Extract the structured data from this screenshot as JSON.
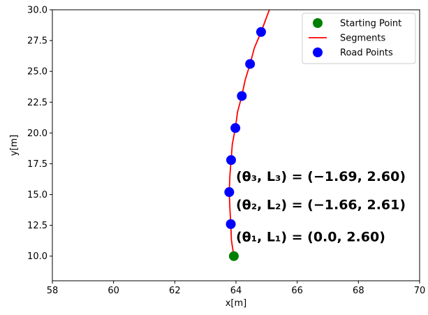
{
  "chart_data": {
    "type": "scatter",
    "xlabel": "x[m]",
    "ylabel": "y[m]",
    "xlim": [
      58,
      70
    ],
    "ylim": [
      8,
      30
    ],
    "x_ticks": [
      58,
      60,
      62,
      64,
      66,
      68,
      70
    ],
    "y_ticks": [
      10.0,
      12.5,
      15.0,
      17.5,
      20.0,
      22.5,
      25.0,
      27.5,
      30.0
    ],
    "x_tick_labels": [
      "58",
      "60",
      "62",
      "64",
      "66",
      "68",
      "70"
    ],
    "y_tick_labels": [
      "10.0",
      "12.5",
      "15.0",
      "17.5",
      "20.0",
      "22.5",
      "25.0",
      "27.5",
      "30.0"
    ],
    "grid": false,
    "legend_position": "top-right",
    "series": [
      {
        "name": "Starting Point",
        "kind": "point",
        "color": "#008000",
        "points": [
          {
            "x": 63.93,
            "y": 10.0
          }
        ]
      },
      {
        "name": "Segments",
        "kind": "line",
        "color": "#ff0000",
        "points": [
          {
            "x": 63.93,
            "y": 10.0
          },
          {
            "x": 63.85,
            "y": 11.3
          },
          {
            "x": 63.83,
            "y": 12.6
          },
          {
            "x": 63.8,
            "y": 13.9
          },
          {
            "x": 63.78,
            "y": 15.2
          },
          {
            "x": 63.8,
            "y": 16.5
          },
          {
            "x": 63.84,
            "y": 17.8
          },
          {
            "x": 63.88,
            "y": 19.1
          },
          {
            "x": 63.98,
            "y": 20.4
          },
          {
            "x": 64.05,
            "y": 21.7
          },
          {
            "x": 64.19,
            "y": 23.0
          },
          {
            "x": 64.3,
            "y": 24.3
          },
          {
            "x": 64.46,
            "y": 25.6
          },
          {
            "x": 64.6,
            "y": 26.9
          },
          {
            "x": 64.82,
            "y": 28.2
          },
          {
            "x": 65.0,
            "y": 29.4
          },
          {
            "x": 65.12,
            "y": 30.2
          }
        ]
      },
      {
        "name": "Road Points",
        "kind": "point",
        "color": "#0000ff",
        "points": [
          {
            "x": 63.83,
            "y": 12.6
          },
          {
            "x": 63.78,
            "y": 15.2
          },
          {
            "x": 63.84,
            "y": 17.8
          },
          {
            "x": 63.98,
            "y": 20.4
          },
          {
            "x": 64.19,
            "y": 23.0
          },
          {
            "x": 64.46,
            "y": 25.6
          },
          {
            "x": 64.82,
            "y": 28.2
          }
        ]
      }
    ],
    "annotations": [
      {
        "text": "(θ₃, L₃) = (−1.69, 2.60)",
        "x": 64.0,
        "y": 16.1
      },
      {
        "text": "(θ₂, L₂) = (−1.66, 2.61)",
        "x": 64.0,
        "y": 13.8
      },
      {
        "text": "(θ₁, L₁) = (0.0, 2.60)",
        "x": 64.0,
        "y": 11.2
      }
    ]
  }
}
